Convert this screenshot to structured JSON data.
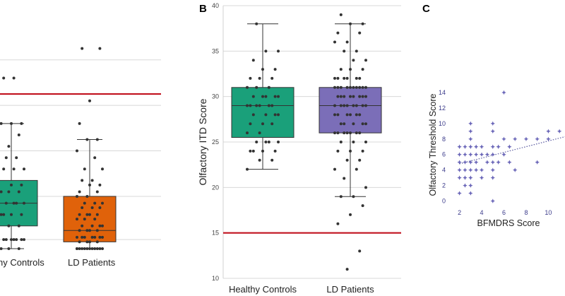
{
  "panels": {
    "b": "B",
    "c": "C"
  },
  "colors": {
    "controls": "#1aa07a",
    "ld_controls_A": "#1aa07a",
    "ld_patients_A": "#e0620a",
    "ld_patients_B": "#7b6eb8",
    "threshold_line": "#c1121f",
    "grid": "#d8d8d8",
    "points": "#333333",
    "scatter": "#6a66b8"
  },
  "chart_data": [
    {
      "id": "A",
      "type": "box",
      "title": "",
      "xlabel": "",
      "ylabel": "",
      "categories": [
        "Healthy Controls",
        "LD Patients"
      ],
      "category_labels_visible": [
        "hy Controls",
        "LD Patients"
      ],
      "ylim": [
        0,
        10
      ],
      "grid": true,
      "cutoff": 6.8,
      "boxes": [
        {
          "name": "Healthy Controls",
          "whisker_low": 0,
          "q1": 1.0,
          "median": 2.0,
          "q3": 3.0,
          "whisker_high": 5.5,
          "points": [
            0,
            0,
            0,
            0,
            0.4,
            0.4,
            0.4,
            0.4,
            0.4,
            0.4,
            0.4,
            1.0,
            1.0,
            1.0,
            1.5,
            1.5,
            1.5,
            1.5,
            2.0,
            2.0,
            2.0,
            2.0,
            2.5,
            2.5,
            2.5,
            2.5,
            2.8,
            2.8,
            3.5,
            3.5,
            3.5,
            4.0,
            4.0,
            4.5,
            4.5,
            5.0,
            5.5,
            5.5,
            5.5,
            7.5,
            7.5
          ]
        },
        {
          "name": "LD Patients",
          "whisker_low": 0,
          "q1": 0.3,
          "median": 0.8,
          "q3": 2.3,
          "whisker_high": 4.8,
          "points": [
            0,
            0,
            0,
            0,
            0,
            0,
            0,
            0,
            0,
            0,
            0,
            0,
            0.3,
            0.3,
            0.3,
            0.3,
            0.5,
            0.5,
            0.5,
            0.5,
            0.5,
            0.5,
            0.5,
            0.8,
            0.8,
            0.8,
            0.8,
            1.0,
            1.0,
            1.0,
            1.0,
            1.3,
            1.3,
            1.3,
            1.5,
            1.5,
            1.5,
            1.5,
            1.8,
            1.8,
            1.8,
            2.0,
            2.0,
            2.0,
            2.3,
            2.3,
            2.5,
            2.5,
            2.8,
            2.8,
            3.0,
            3.0,
            3.5,
            3.5,
            4.0,
            4.3,
            4.8,
            4.8,
            5.5,
            6.5,
            8.8,
            8.8
          ]
        }
      ]
    },
    {
      "id": "B",
      "type": "box",
      "title": "",
      "xlabel": "",
      "ylabel": "Olfactory ITD Score",
      "categories": [
        "Healthy Controls",
        "LD Patients"
      ],
      "yticks": [
        10,
        15,
        20,
        25,
        30,
        35,
        40
      ],
      "ylim": [
        10,
        40
      ],
      "grid": true,
      "cutoff": 15,
      "boxes": [
        {
          "name": "Healthy Controls",
          "whisker_low": 22,
          "q1": 25.5,
          "median": 29,
          "q3": 31,
          "whisker_high": 38,
          "points": [
            22,
            23,
            23,
            24,
            24,
            24,
            24,
            25,
            25,
            25,
            25,
            26,
            26,
            27,
            27,
            27,
            28,
            28,
            28,
            28,
            29,
            29,
            29,
            29,
            29,
            29,
            30,
            30,
            30,
            30,
            30,
            31,
            31,
            31,
            32,
            32,
            32,
            33,
            33,
            34,
            35,
            35,
            38
          ]
        },
        {
          "name": "LD Patients",
          "whisker_low": 19,
          "q1": 26,
          "median": 29,
          "q3": 31,
          "whisker_high": 38,
          "points": [
            11,
            13,
            16,
            17,
            18,
            19,
            19,
            20,
            21,
            22,
            22,
            23,
            23,
            24,
            24,
            24,
            25,
            25,
            25,
            26,
            26,
            26,
            26,
            26,
            26,
            26,
            27,
            27,
            27,
            27,
            27,
            28,
            28,
            28,
            28,
            28,
            28,
            29,
            29,
            29,
            29,
            29,
            29,
            29,
            29,
            30,
            30,
            30,
            30,
            30,
            30,
            30,
            30,
            31,
            31,
            31,
            31,
            31,
            31,
            31,
            31,
            31,
            31,
            32,
            32,
            32,
            32,
            32,
            32,
            33,
            33,
            33,
            34,
            34,
            35,
            35,
            36,
            36,
            37,
            37,
            38,
            38,
            39
          ]
        }
      ]
    },
    {
      "id": "C",
      "type": "scatter",
      "title": "",
      "xlabel": "BFMDRS Score",
      "ylabel": "Olfactory Threshold Score",
      "xticks": [
        2,
        4,
        6,
        8,
        10
      ],
      "yticks": [
        0,
        2,
        4,
        6,
        8,
        10,
        12,
        14
      ],
      "xlim": [
        1.2,
        11.5
      ],
      "ylim": [
        -0.5,
        15
      ],
      "trendline": {
        "x": [
          2,
          11.5
        ],
        "y": [
          4.8,
          8.3
        ]
      },
      "points": [
        [
          2,
          1
        ],
        [
          2,
          3
        ],
        [
          2,
          4
        ],
        [
          2,
          5
        ],
        [
          2,
          6
        ],
        [
          2,
          7
        ],
        [
          2.5,
          2
        ],
        [
          2.5,
          3
        ],
        [
          2.5,
          4
        ],
        [
          2.5,
          5
        ],
        [
          2.5,
          6
        ],
        [
          2.5,
          7
        ],
        [
          3,
          1
        ],
        [
          3,
          2
        ],
        [
          3,
          3
        ],
        [
          3,
          4
        ],
        [
          3,
          5
        ],
        [
          3,
          6
        ],
        [
          3,
          7
        ],
        [
          3,
          8
        ],
        [
          3,
          9
        ],
        [
          3,
          10
        ],
        [
          3.5,
          4
        ],
        [
          3.5,
          5
        ],
        [
          3.5,
          6
        ],
        [
          3.5,
          7
        ],
        [
          4,
          3
        ],
        [
          4,
          4
        ],
        [
          4,
          6
        ],
        [
          4,
          7
        ],
        [
          4.5,
          5
        ],
        [
          4.5,
          6
        ],
        [
          5,
          0
        ],
        [
          5,
          3
        ],
        [
          5,
          4
        ],
        [
          5,
          5
        ],
        [
          5,
          6
        ],
        [
          5,
          7
        ],
        [
          5,
          9
        ],
        [
          5,
          10
        ],
        [
          5.5,
          5
        ],
        [
          5.5,
          7
        ],
        [
          6,
          6
        ],
        [
          6,
          8
        ],
        [
          6,
          14
        ],
        [
          6.5,
          5
        ],
        [
          6.5,
          7
        ],
        [
          7,
          4
        ],
        [
          7,
          8
        ],
        [
          8,
          8
        ],
        [
          9,
          5
        ],
        [
          9,
          8
        ],
        [
          10,
          8
        ],
        [
          10,
          9
        ],
        [
          11,
          9
        ]
      ]
    }
  ]
}
